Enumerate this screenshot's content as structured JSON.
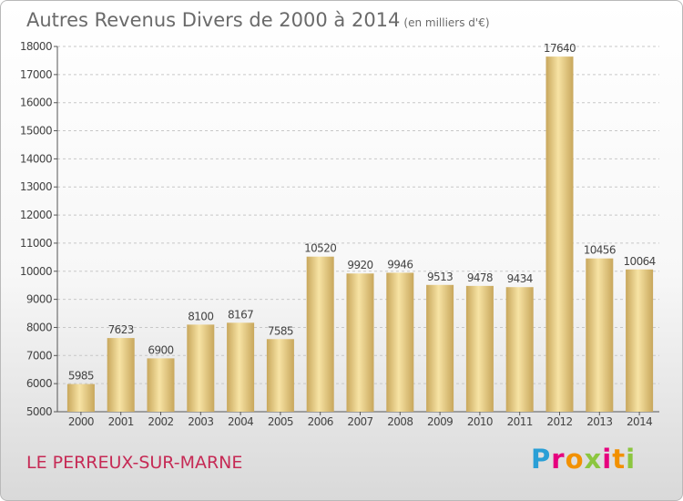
{
  "header": {
    "title": "Autres Revenus Divers de 2000 à 2014",
    "subtitle": "(en milliers d'€)"
  },
  "footer": {
    "town": "LE PERREUX-SUR-MARNE",
    "logo_text": "Proxiti",
    "logo_colors": [
      "#f29100",
      "#e6007e",
      "#2a9fd6",
      "#8cc63f"
    ]
  },
  "chart_data": {
    "type": "bar",
    "title": "Autres Revenus Divers de 2000 à 2014",
    "subtitle": "(en milliers d'€)",
    "xlabel": "",
    "ylabel": "",
    "categories": [
      "2000",
      "2001",
      "2002",
      "2003",
      "2004",
      "2005",
      "2006",
      "2007",
      "2008",
      "2009",
      "2010",
      "2011",
      "2012",
      "2013",
      "2014"
    ],
    "values": [
      5985,
      7623,
      6900,
      8100,
      8167,
      7585,
      10520,
      9920,
      9946,
      9513,
      9478,
      9434,
      17640,
      10456,
      10064
    ],
    "ylim": [
      5000,
      18000
    ],
    "yticks": [
      5000,
      6000,
      7000,
      8000,
      9000,
      10000,
      11000,
      12000,
      13000,
      14000,
      15000,
      16000,
      17000,
      18000
    ],
    "grid": "horizontal dashed",
    "data_labels": true,
    "bar_color_light": "#f7e3a4",
    "bar_color_dark": "#c8a75c"
  }
}
